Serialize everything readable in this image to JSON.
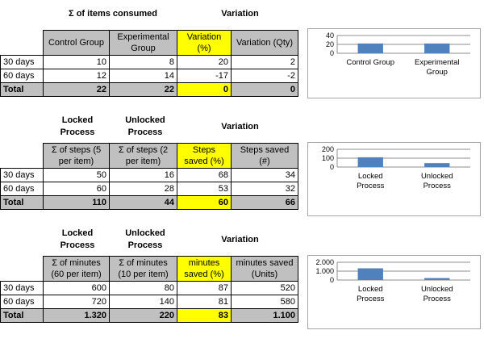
{
  "sections": [
    {
      "headers": {
        "left": "Σ of items consumed",
        "mid": "",
        "right": "Variation"
      },
      "columns": [
        "Control Group",
        "Experimental Group",
        "Variation (%)",
        "Variation (Qty)"
      ],
      "rows": [
        {
          "label": "30 days",
          "values": [
            "10",
            "8",
            "20",
            "2"
          ]
        },
        {
          "label": "60 days",
          "values": [
            "12",
            "14",
            "-17",
            "-2"
          ]
        }
      ],
      "total": {
        "label": "Total",
        "values": [
          "22",
          "22",
          "0",
          "0"
        ]
      }
    },
    {
      "headers": {
        "left": "Locked Process",
        "mid": "Unlocked Process",
        "right": "Variation"
      },
      "columns": [
        "Σ of steps (5 per item)",
        "Σ of steps (2 per item)",
        "Steps saved (%)",
        "Steps saved (#)"
      ],
      "rows": [
        {
          "label": "30 days",
          "values": [
            "50",
            "16",
            "68",
            "34"
          ]
        },
        {
          "label": "60 days",
          "values": [
            "60",
            "28",
            "53",
            "32"
          ]
        }
      ],
      "total": {
        "label": "Total",
        "values": [
          "110",
          "44",
          "60",
          "66"
        ]
      }
    },
    {
      "headers": {
        "left": "Locked Process",
        "mid": "Unlocked Process",
        "right": "Variation"
      },
      "columns": [
        "Σ of minutes (60 per item)",
        "Σ of minutes (10 per item)",
        "minutes saved (%)",
        "minutes saved (Units)"
      ],
      "rows": [
        {
          "label": "30 days",
          "values": [
            "600",
            "80",
            "87",
            "520"
          ]
        },
        {
          "label": "60 days",
          "values": [
            "720",
            "140",
            "81",
            "580"
          ]
        }
      ],
      "total": {
        "label": "Total",
        "values": [
          "1.320",
          "220",
          "83",
          "1.100"
        ]
      }
    }
  ],
  "colors": {
    "highlight": "#ffff00",
    "header_gray": "#c0c0c0",
    "bar": "#4f81bd"
  },
  "chart_data": [
    {
      "type": "bar",
      "categories": [
        "Control Group",
        "Experimental Group"
      ],
      "values": [
        22,
        22
      ],
      "ylim": [
        0,
        40
      ],
      "yticks": [
        "0",
        "20",
        "40"
      ],
      "ytick_values": [
        0,
        20,
        40
      ]
    },
    {
      "type": "bar",
      "categories": [
        "Locked Process",
        "Unlocked Process"
      ],
      "values": [
        110,
        44
      ],
      "ylim": [
        0,
        200
      ],
      "yticks": [
        "0",
        "100",
        "200"
      ],
      "ytick_values": [
        0,
        100,
        200
      ]
    },
    {
      "type": "bar",
      "categories": [
        "Locked Process",
        "Unlocked Process"
      ],
      "values": [
        1320,
        220
      ],
      "ylim": [
        0,
        2000
      ],
      "yticks": [
        "0",
        "1.000",
        "2.000"
      ],
      "ytick_values": [
        0,
        1000,
        2000
      ]
    }
  ]
}
